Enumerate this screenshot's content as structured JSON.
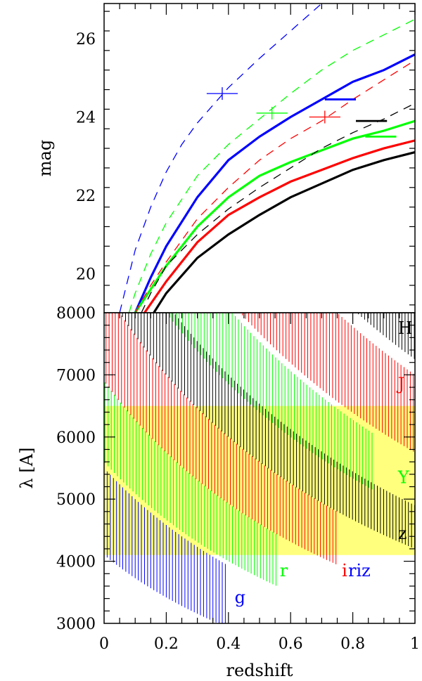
{
  "chart_data": [
    {
      "type": "line",
      "ylabel": "mag",
      "xlim": [
        0,
        1
      ],
      "ylim": [
        19.0,
        26.9
      ],
      "yticks": [
        20,
        22,
        24,
        26
      ],
      "series": [
        {
          "color": "#0000ff",
          "style": "solid",
          "x": [
            0.1,
            0.15,
            0.2,
            0.3,
            0.4,
            0.5,
            0.6,
            0.7,
            0.8,
            0.9,
            1.0
          ],
          "values": [
            19.0,
            19.9,
            20.7,
            21.95,
            22.9,
            23.5,
            24.0,
            24.45,
            24.9,
            25.2,
            25.6
          ]
        },
        {
          "color": "#00ff00",
          "style": "solid",
          "x": [
            0.1,
            0.15,
            0.2,
            0.3,
            0.4,
            0.5,
            0.6,
            0.7,
            0.8,
            0.9,
            1.0
          ],
          "values": [
            19.0,
            19.6,
            20.2,
            21.2,
            21.95,
            22.5,
            22.85,
            23.15,
            23.45,
            23.65,
            23.9
          ]
        },
        {
          "color": "#ff0000",
          "style": "solid",
          "x": [
            0.13,
            0.2,
            0.3,
            0.4,
            0.5,
            0.6,
            0.7,
            0.8,
            0.9,
            1.0
          ],
          "values": [
            19.0,
            19.8,
            20.8,
            21.5,
            21.95,
            22.35,
            22.65,
            22.95,
            23.2,
            23.4
          ]
        },
        {
          "color": "#000000",
          "style": "solid",
          "x": [
            0.16,
            0.2,
            0.3,
            0.4,
            0.5,
            0.6,
            0.7,
            0.8,
            0.9,
            1.0
          ],
          "values": [
            19.0,
            19.5,
            20.4,
            21.0,
            21.5,
            21.95,
            22.3,
            22.65,
            22.9,
            23.1
          ]
        },
        {
          "color": "#0000ff",
          "style": "dashed",
          "x": [
            0.05,
            0.1,
            0.15,
            0.2,
            0.25,
            0.3,
            0.35,
            0.4,
            0.5,
            0.6,
            0.7
          ],
          "values": [
            19.0,
            20.6,
            21.7,
            22.6,
            23.3,
            23.85,
            24.3,
            24.75,
            25.5,
            26.2,
            26.9
          ]
        },
        {
          "color": "#00ff00",
          "style": "dashed",
          "x": [
            0.08,
            0.1,
            0.15,
            0.2,
            0.3,
            0.4,
            0.5,
            0.6,
            0.7,
            0.8,
            0.9,
            1.0
          ],
          "values": [
            19.0,
            19.5,
            20.5,
            21.3,
            22.5,
            23.3,
            23.95,
            24.6,
            25.2,
            25.7,
            26.1,
            26.5
          ]
        },
        {
          "color": "#ff0000",
          "style": "dashed",
          "x": [
            0.1,
            0.15,
            0.2,
            0.3,
            0.4,
            0.5,
            0.6,
            0.7,
            0.8,
            0.9,
            1.0
          ],
          "values": [
            19.0,
            19.7,
            20.3,
            21.4,
            22.2,
            22.9,
            23.45,
            23.9,
            24.45,
            24.95,
            25.45
          ]
        },
        {
          "color": "#000000",
          "style": "dashed",
          "x": [
            0.12,
            0.15,
            0.2,
            0.3,
            0.4,
            0.5,
            0.6,
            0.7,
            0.8,
            0.9,
            1.0
          ],
          "values": [
            19.0,
            19.5,
            20.2,
            21.0,
            21.65,
            22.2,
            22.7,
            23.2,
            23.6,
            23.95,
            24.35
          ]
        }
      ],
      "limits": [
        {
          "color": "#0000ff",
          "x": [
            0.33,
            0.43
          ],
          "y": 24.6,
          "cross": true
        },
        {
          "color": "#00ff00",
          "x": [
            0.49,
            0.59
          ],
          "y": 24.1,
          "cross": true
        },
        {
          "color": "#ff0000",
          "x": [
            0.66,
            0.76
          ],
          "y": 24.0,
          "cross": true
        },
        {
          "color": "#0000ff",
          "x": [
            0.71,
            0.81
          ],
          "y": 24.45,
          "cross": false
        },
        {
          "color": "#000000",
          "x": [
            0.81,
            0.91
          ],
          "y": 23.9,
          "cross": false
        },
        {
          "color": "#00ff00",
          "x": [
            0.84,
            0.94
          ],
          "y": 23.5,
          "cross": false
        }
      ]
    },
    {
      "type": "area",
      "xlabel": "redshift",
      "ylabel": "λ [A]",
      "xlim": [
        0,
        1
      ],
      "ylim": [
        3000,
        8000
      ],
      "xticks": [
        "0",
        "0.2",
        "0.4",
        "0.6",
        "0.8",
        "1"
      ],
      "xtick_values": [
        0,
        0.2,
        0.4,
        0.6,
        0.8,
        1
      ],
      "yticks": [
        3000,
        4000,
        5000,
        6000,
        7000,
        8000
      ],
      "shaded_region": {
        "color": "#ffff66",
        "lambda_min": 4100,
        "lambda_max": 6500
      },
      "bands": [
        {
          "name": "g",
          "color": "#0000ff",
          "lambda_low": 4100,
          "lambda_high": 5500,
          "z_max": 0.4
        },
        {
          "name": "r",
          "color": "#00ff00",
          "lambda_low": 5600,
          "lambda_high": 6900,
          "z_max": 0.56
        },
        {
          "name": "i",
          "color": "#ff0000",
          "lambda_low": 6900,
          "lambda_high": 8400,
          "z_max": 0.75
        },
        {
          "name": "z",
          "color": "#000000",
          "lambda_low": 8400,
          "lambda_high": 9800,
          "z_max": 1.0
        },
        {
          "name": "Y",
          "color": "#00ff00",
          "lambda_low": 9600,
          "lambda_high": 11300,
          "z_max": 0.87
        },
        {
          "name": "J",
          "color": "#ff0000",
          "lambda_low": 11500,
          "lambda_high": 14000,
          "z_max": 1.0
        },
        {
          "name": "H",
          "color": "#000000",
          "lambda_low": 14500,
          "lambda_high": 18000,
          "z_max": 1.0
        }
      ],
      "annotations": [
        {
          "text": "H",
          "color": "#000000",
          "x": 0.945,
          "y": 7750
        },
        {
          "text": "J",
          "color": "#ff0000",
          "x": 0.945,
          "y": 6850
        },
        {
          "text": "Y",
          "color": "#00ff00",
          "x": 0.945,
          "y": 5350
        },
        {
          "text": "z",
          "color": "#000000",
          "x": 0.945,
          "y": 4450
        },
        {
          "text": "i",
          "color": "#ff0000",
          "x": 0.765,
          "y": 3850
        },
        {
          "text": "riz",
          "color": "#0000ff",
          "x": 0.785,
          "y": 3850
        },
        {
          "text": "r",
          "color": "#00ff00",
          "x": 0.565,
          "y": 3850
        },
        {
          "text": "g",
          "color": "#0000ff",
          "x": 0.42,
          "y": 3420
        }
      ]
    }
  ]
}
